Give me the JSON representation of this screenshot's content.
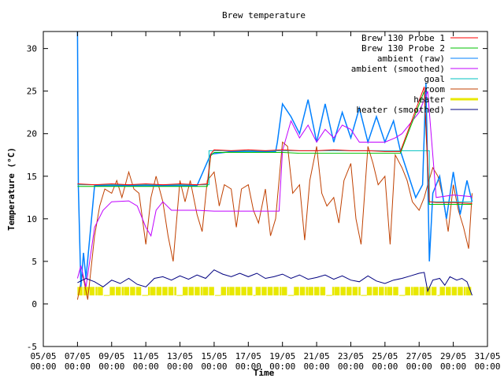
{
  "chart_data": {
    "type": "line",
    "title": "Brew temperature",
    "xlabel": "Time",
    "ylabel": "Temperature (°C)",
    "xlim": [
      "05/05 00:00",
      "31/05 00:00"
    ],
    "ylim": [
      -5,
      32
    ],
    "yticks": [
      -5,
      0,
      5,
      10,
      15,
      20,
      25,
      30
    ],
    "xticks": [
      {
        "day": 5,
        "label1": "05/05",
        "label2": "00:00"
      },
      {
        "day": 7,
        "label1": "07/05",
        "label2": "00:00"
      },
      {
        "day": 9,
        "label1": "09/05",
        "label2": "00:00"
      },
      {
        "day": 11,
        "label1": "11/05",
        "label2": "00:00"
      },
      {
        "day": 13,
        "label1": "13/05",
        "label2": "00:00"
      },
      {
        "day": 15,
        "label1": "15/05",
        "label2": "00:00"
      },
      {
        "day": 17,
        "label1": "17/05",
        "label2": "00:00"
      },
      {
        "day": 19,
        "label1": "19/05",
        "label2": "00:00"
      },
      {
        "day": 21,
        "label1": "21/05",
        "label2": "00:00"
      },
      {
        "day": 23,
        "label1": "23/05",
        "label2": "00:00"
      },
      {
        "day": 25,
        "label1": "25/05",
        "label2": "00:00"
      },
      {
        "day": 27,
        "label1": "27/05",
        "label2": "00:00"
      },
      {
        "day": 29,
        "label1": "29/05",
        "label2": "00:00"
      },
      {
        "day": 31,
        "label1": "31/05",
        "label2": "00:00"
      }
    ],
    "grid": false,
    "legend_position": "top-right",
    "series": [
      {
        "name": "Brew 130 Probe 1",
        "color": "#ff0000",
        "points": [
          [
            7.0,
            14.1
          ],
          [
            8.0,
            14.0
          ],
          [
            9.0,
            14.1
          ],
          [
            10.0,
            14.0
          ],
          [
            11.0,
            14.1
          ],
          [
            12.0,
            14.0
          ],
          [
            13.0,
            14.1
          ],
          [
            14.0,
            14.0
          ],
          [
            14.6,
            14.1
          ],
          [
            14.8,
            17.6
          ],
          [
            15.0,
            18.1
          ],
          [
            16.0,
            18.0
          ],
          [
            17.0,
            18.1
          ],
          [
            18.0,
            18.0
          ],
          [
            19.0,
            18.1
          ],
          [
            20.0,
            18.0
          ],
          [
            21.0,
            18.0
          ],
          [
            22.0,
            18.1
          ],
          [
            23.0,
            18.0
          ],
          [
            24.0,
            18.0
          ],
          [
            25.0,
            17.9
          ],
          [
            25.9,
            17.9
          ],
          [
            27.3,
            25.5
          ],
          [
            27.6,
            12.0
          ],
          [
            28.0,
            11.9
          ],
          [
            29.0,
            11.9
          ],
          [
            30.1,
            11.8
          ]
        ]
      },
      {
        "name": "Brew 130 Probe 2",
        "color": "#00c000",
        "points": [
          [
            7.0,
            13.8
          ],
          [
            8.0,
            13.8
          ],
          [
            9.0,
            13.8
          ],
          [
            10.0,
            13.8
          ],
          [
            11.0,
            13.8
          ],
          [
            12.0,
            13.8
          ],
          [
            13.0,
            13.8
          ],
          [
            14.0,
            13.8
          ],
          [
            14.6,
            13.8
          ],
          [
            14.8,
            17.4
          ],
          [
            15.0,
            17.8
          ],
          [
            16.0,
            17.8
          ],
          [
            17.0,
            17.8
          ],
          [
            18.0,
            17.8
          ],
          [
            19.0,
            17.8
          ],
          [
            20.0,
            17.7
          ],
          [
            21.0,
            17.7
          ],
          [
            22.0,
            17.7
          ],
          [
            23.0,
            17.7
          ],
          [
            24.0,
            17.7
          ],
          [
            25.0,
            17.7
          ],
          [
            25.9,
            17.7
          ],
          [
            27.3,
            25.0
          ],
          [
            27.6,
            11.7
          ],
          [
            28.0,
            11.7
          ],
          [
            29.0,
            11.7
          ],
          [
            30.1,
            11.7
          ]
        ]
      },
      {
        "name": "ambient (raw)",
        "color": "#0080ff",
        "points": [
          [
            7.0,
            32.0
          ],
          [
            7.05,
            13.8
          ],
          [
            7.2,
            2.0
          ],
          [
            7.35,
            6.0
          ],
          [
            7.5,
            3.0
          ],
          [
            8.0,
            13.9
          ],
          [
            9.0,
            13.9
          ],
          [
            10.0,
            13.9
          ],
          [
            11.0,
            13.9
          ],
          [
            12.0,
            13.9
          ],
          [
            13.0,
            13.9
          ],
          [
            14.0,
            13.9
          ],
          [
            14.8,
            17.6
          ],
          [
            16.0,
            17.9
          ],
          [
            17.0,
            17.9
          ],
          [
            18.0,
            17.9
          ],
          [
            18.6,
            17.9
          ],
          [
            18.7,
            19.0
          ],
          [
            19.0,
            23.5
          ],
          [
            19.5,
            22.0
          ],
          [
            20.0,
            20.0
          ],
          [
            20.5,
            24.0
          ],
          [
            21.0,
            19.0
          ],
          [
            21.5,
            23.5
          ],
          [
            22.0,
            19.0
          ],
          [
            22.5,
            22.5
          ],
          [
            23.0,
            19.5
          ],
          [
            23.5,
            23.0
          ],
          [
            24.0,
            19.0
          ],
          [
            24.5,
            22.0
          ],
          [
            25.0,
            19.0
          ],
          [
            25.5,
            21.5
          ],
          [
            25.9,
            18.0
          ],
          [
            26.8,
            12.5
          ],
          [
            27.2,
            14.0
          ],
          [
            27.4,
            26.0
          ],
          [
            27.6,
            5.0
          ],
          [
            27.8,
            13.0
          ],
          [
            28.2,
            15.0
          ],
          [
            28.6,
            10.0
          ],
          [
            29.0,
            15.5
          ],
          [
            29.4,
            10.5
          ],
          [
            29.8,
            14.5
          ],
          [
            30.1,
            12.0
          ]
        ]
      },
      {
        "name": "ambient (smoothed)",
        "color": "#c000ff",
        "points": [
          [
            7.0,
            3.0
          ],
          [
            7.2,
            4.5
          ],
          [
            7.5,
            2.0
          ],
          [
            8.0,
            9.0
          ],
          [
            8.5,
            11.0
          ],
          [
            9.0,
            12.0
          ],
          [
            10.0,
            12.1
          ],
          [
            10.5,
            11.5
          ],
          [
            11.0,
            9.0
          ],
          [
            11.3,
            8.0
          ],
          [
            11.6,
            11.0
          ],
          [
            12.0,
            12.0
          ],
          [
            12.5,
            11.0
          ],
          [
            13.0,
            11.0
          ],
          [
            14.0,
            11.0
          ],
          [
            15.0,
            10.9
          ],
          [
            16.0,
            10.9
          ],
          [
            17.0,
            10.9
          ],
          [
            18.0,
            10.9
          ],
          [
            18.8,
            10.9
          ],
          [
            19.0,
            18.0
          ],
          [
            19.5,
            21.5
          ],
          [
            20.0,
            19.5
          ],
          [
            20.5,
            21.0
          ],
          [
            21.0,
            19.0
          ],
          [
            21.5,
            20.5
          ],
          [
            22.0,
            19.5
          ],
          [
            22.5,
            21.0
          ],
          [
            23.0,
            20.5
          ],
          [
            23.5,
            19.0
          ],
          [
            24.0,
            19.0
          ],
          [
            25.0,
            19.0
          ],
          [
            25.6,
            19.5
          ],
          [
            26.0,
            20.0
          ],
          [
            27.0,
            22.5
          ],
          [
            27.5,
            25.0
          ],
          [
            28.0,
            12.5
          ],
          [
            29.0,
            12.8
          ],
          [
            30.1,
            12.6
          ]
        ]
      },
      {
        "name": "goal",
        "color": "#00c0c0",
        "points": [
          [
            7.0,
            14.0
          ],
          [
            14.7,
            14.0
          ],
          [
            14.7,
            18.0
          ],
          [
            27.6,
            18.0
          ],
          [
            27.6,
            12.0
          ],
          [
            30.1,
            12.0
          ]
        ]
      },
      {
        "name": "room",
        "color": "#c04000",
        "points": [
          [
            7.0,
            0.5
          ],
          [
            7.3,
            3.5
          ],
          [
            7.6,
            0.5
          ],
          [
            8.0,
            8.0
          ],
          [
            8.3,
            11.5
          ],
          [
            8.6,
            13.5
          ],
          [
            9.0,
            13.0
          ],
          [
            9.3,
            14.5
          ],
          [
            9.6,
            12.5
          ],
          [
            10.0,
            15.5
          ],
          [
            10.3,
            13.5
          ],
          [
            10.6,
            13.0
          ],
          [
            11.0,
            7.0
          ],
          [
            11.3,
            12.5
          ],
          [
            11.6,
            15.0
          ],
          [
            12.0,
            12.0
          ],
          [
            12.3,
            8.0
          ],
          [
            12.6,
            5.0
          ],
          [
            13.0,
            14.5
          ],
          [
            13.3,
            12.0
          ],
          [
            13.6,
            14.5
          ],
          [
            14.0,
            10.5
          ],
          [
            14.3,
            8.5
          ],
          [
            14.6,
            14.5
          ],
          [
            15.0,
            15.5
          ],
          [
            15.3,
            11.5
          ],
          [
            15.6,
            14.0
          ],
          [
            16.0,
            13.5
          ],
          [
            16.3,
            9.0
          ],
          [
            16.6,
            13.5
          ],
          [
            17.0,
            14.0
          ],
          [
            17.3,
            11.0
          ],
          [
            17.6,
            9.5
          ],
          [
            18.0,
            13.5
          ],
          [
            18.3,
            8.0
          ],
          [
            18.6,
            10.0
          ],
          [
            19.0,
            19.0
          ],
          [
            19.3,
            18.5
          ],
          [
            19.6,
            13.0
          ],
          [
            20.0,
            14.0
          ],
          [
            20.3,
            7.5
          ],
          [
            20.6,
            14.5
          ],
          [
            21.0,
            18.5
          ],
          [
            21.3,
            13.0
          ],
          [
            21.6,
            11.5
          ],
          [
            22.0,
            12.5
          ],
          [
            22.3,
            9.5
          ],
          [
            22.6,
            14.5
          ],
          [
            23.0,
            16.5
          ],
          [
            23.3,
            10.0
          ],
          [
            23.6,
            7.0
          ],
          [
            24.0,
            18.5
          ],
          [
            24.3,
            16.5
          ],
          [
            24.6,
            14.0
          ],
          [
            25.0,
            15.0
          ],
          [
            25.3,
            7.0
          ],
          [
            25.6,
            17.5
          ],
          [
            26.0,
            16.0
          ],
          [
            26.3,
            14.5
          ],
          [
            26.6,
            12.0
          ],
          [
            27.0,
            11.0
          ],
          [
            27.3,
            12.5
          ],
          [
            27.5,
            14.0
          ],
          [
            27.8,
            16.0
          ],
          [
            28.1,
            15.0
          ],
          [
            28.4,
            12.5
          ],
          [
            28.7,
            8.5
          ],
          [
            29.0,
            14.0
          ],
          [
            29.3,
            11.0
          ],
          [
            29.6,
            9.0
          ],
          [
            29.9,
            6.5
          ],
          [
            30.1,
            13.0
          ]
        ]
      },
      {
        "name": "heater",
        "color": "#e8e800",
        "points": [
          [
            7.0,
            1.0
          ],
          [
            30.1,
            2.0
          ]
        ]
      },
      {
        "name": "heater (smoothed)",
        "color": "#000080",
        "points": [
          [
            7.0,
            2.5
          ],
          [
            7.5,
            3.0
          ],
          [
            8.0,
            2.6
          ],
          [
            8.5,
            2.0
          ],
          [
            9.0,
            2.8
          ],
          [
            9.5,
            2.4
          ],
          [
            10.0,
            3.0
          ],
          [
            10.5,
            2.3
          ],
          [
            11.0,
            2.0
          ],
          [
            11.5,
            3.0
          ],
          [
            12.0,
            3.2
          ],
          [
            12.5,
            2.8
          ],
          [
            13.0,
            3.3
          ],
          [
            13.5,
            2.9
          ],
          [
            14.0,
            3.4
          ],
          [
            14.5,
            3.0
          ],
          [
            15.0,
            4.0
          ],
          [
            15.5,
            3.5
          ],
          [
            16.0,
            3.2
          ],
          [
            16.5,
            3.6
          ],
          [
            17.0,
            3.2
          ],
          [
            17.5,
            3.6
          ],
          [
            18.0,
            3.0
          ],
          [
            18.5,
            3.2
          ],
          [
            19.0,
            3.5
          ],
          [
            19.5,
            3.0
          ],
          [
            20.0,
            3.4
          ],
          [
            20.5,
            2.9
          ],
          [
            21.0,
            3.1
          ],
          [
            21.5,
            3.4
          ],
          [
            22.0,
            2.9
          ],
          [
            22.5,
            3.3
          ],
          [
            23.0,
            2.8
          ],
          [
            23.5,
            2.6
          ],
          [
            24.0,
            3.3
          ],
          [
            24.5,
            2.7
          ],
          [
            25.0,
            2.4
          ],
          [
            25.5,
            2.8
          ],
          [
            26.0,
            3.0
          ],
          [
            26.5,
            3.3
          ],
          [
            27.0,
            3.6
          ],
          [
            27.3,
            3.7
          ],
          [
            27.5,
            1.5
          ],
          [
            27.8,
            2.8
          ],
          [
            28.2,
            3.0
          ],
          [
            28.5,
            2.2
          ],
          [
            28.8,
            3.2
          ],
          [
            29.2,
            2.8
          ],
          [
            29.5,
            3.0
          ],
          [
            29.8,
            2.6
          ],
          [
            30.1,
            1.0
          ]
        ]
      }
    ]
  }
}
